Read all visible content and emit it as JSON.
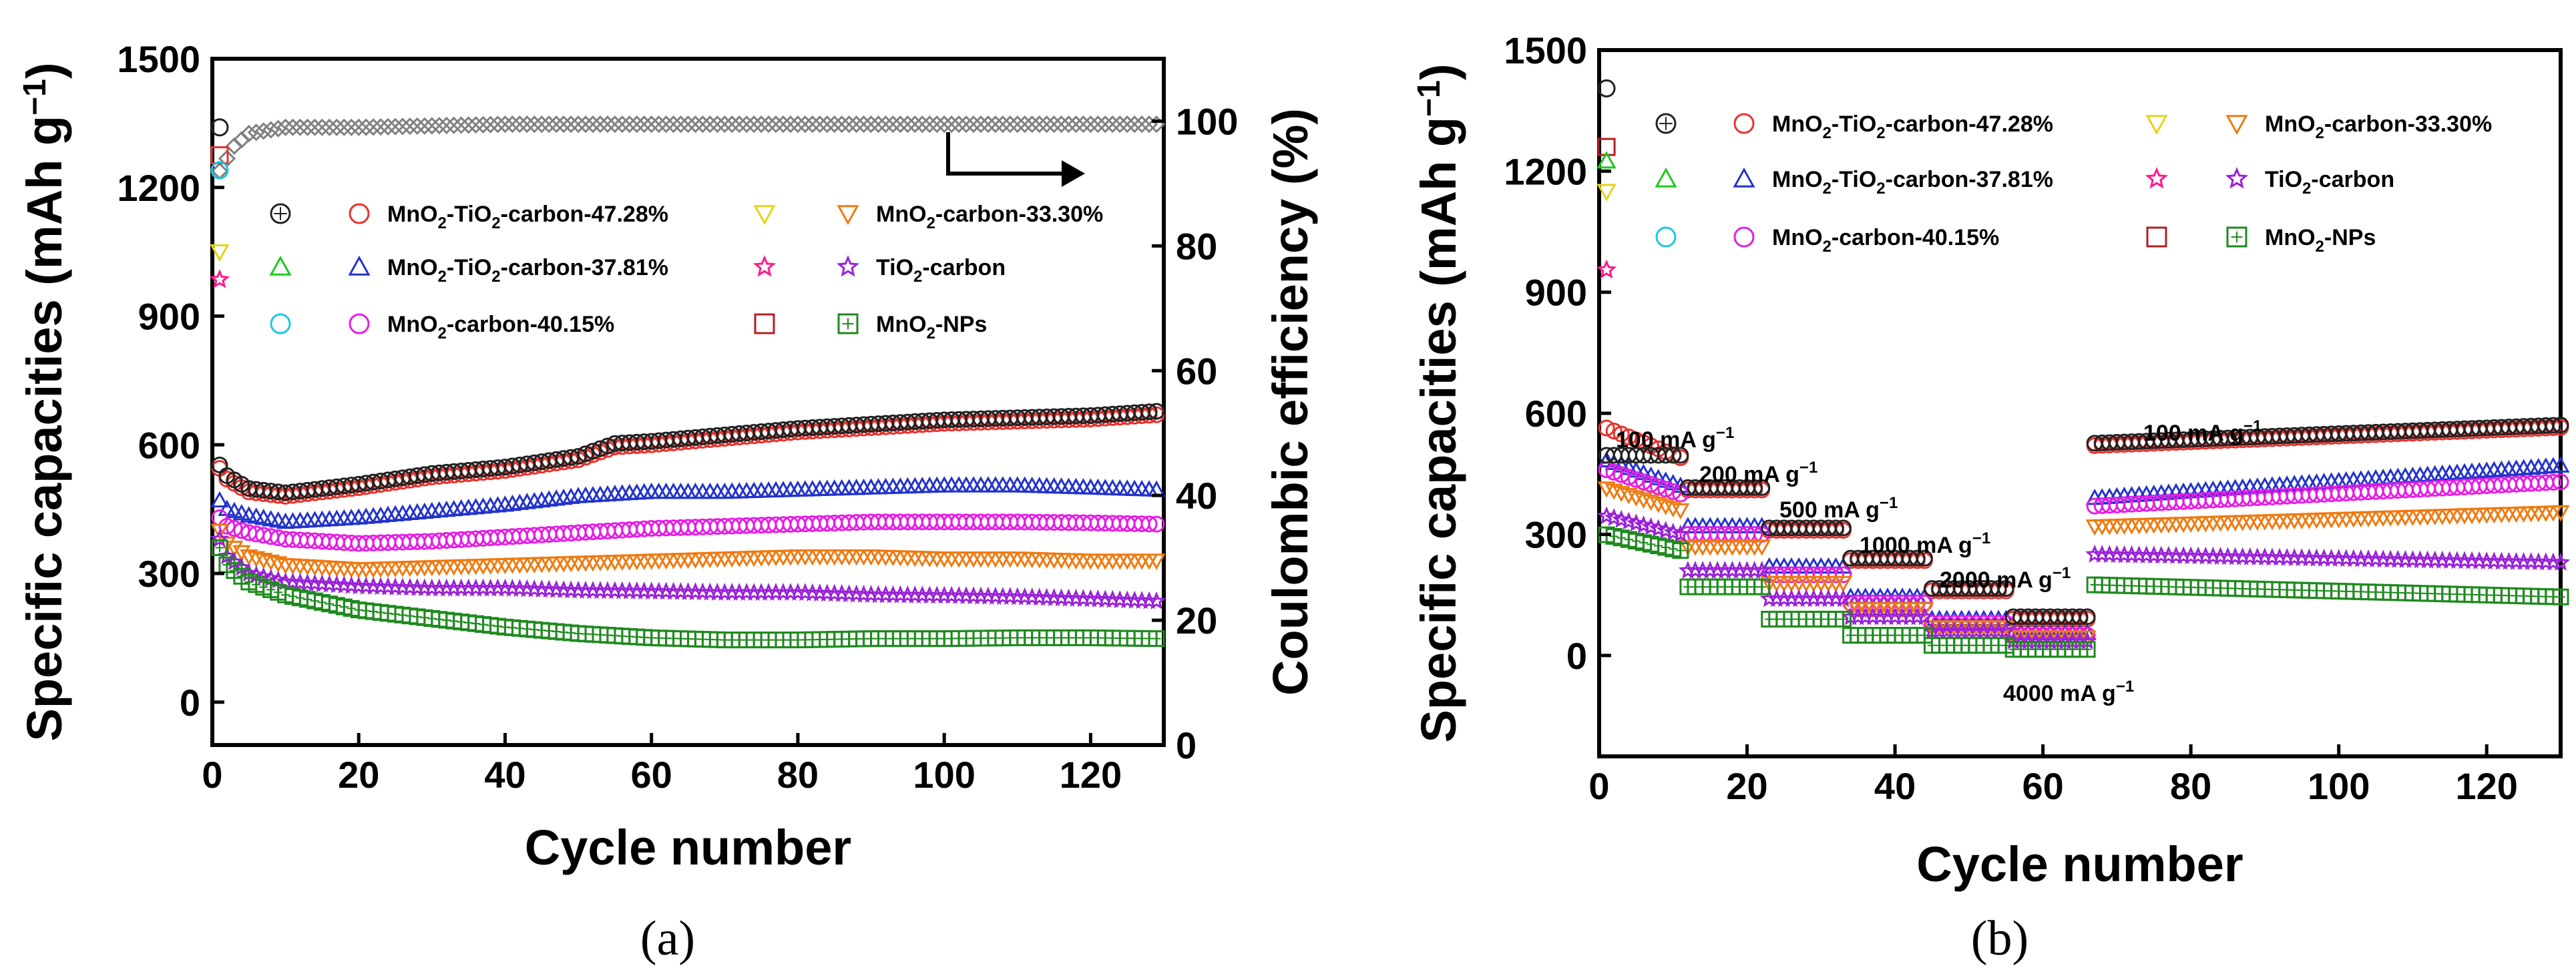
{
  "chart_data": [
    {
      "panel": "(a)",
      "type": "scatter",
      "xlabel": "Cycle number",
      "ylabel": "Specific capacities (mAh g-1)",
      "ylabel_parts": [
        "Specific capacities (mAh g",
        "−1",
        ")"
      ],
      "y2label": "Coulombic efficiency (%)",
      "xlim": [
        0,
        130
      ],
      "ylim": [
        -100,
        1500
      ],
      "y2lim": [
        0,
        110
      ],
      "xticks": [
        0,
        20,
        40,
        60,
        80,
        100,
        120
      ],
      "yticks": [
        0,
        300,
        600,
        900,
        1200,
        1500
      ],
      "y2ticks": [
        0,
        20,
        40,
        60,
        80,
        100
      ],
      "series": [
        {
          "name": "MnO2-TiO2-carbon-47.28%",
          "name_parts": [
            "MnO",
            "2",
            "-TiO",
            "2",
            "-carbon-47.28%"
          ],
          "color": "#e8322e",
          "marker": "circle",
          "x": [
            1,
            2,
            5,
            10,
            20,
            30,
            40,
            50,
            55,
            60,
            70,
            80,
            90,
            100,
            110,
            120,
            129
          ],
          "y": [
            545,
            520,
            490,
            480,
            500,
            525,
            540,
            565,
            595,
            600,
            615,
            630,
            640,
            650,
            655,
            660,
            670
          ]
        },
        {
          "name": "MnO2-TiO2-carbon-37.81%",
          "name_parts": [
            "MnO",
            "2",
            "-TiO",
            "2",
            "-carbon-37.81%"
          ],
          "color": "#2233cc",
          "marker": "triangle-up",
          "x": [
            1,
            2,
            5,
            10,
            20,
            30,
            40,
            50,
            60,
            70,
            80,
            90,
            100,
            110,
            120,
            129
          ],
          "y": [
            470,
            450,
            435,
            420,
            430,
            445,
            460,
            480,
            490,
            490,
            495,
            500,
            505,
            505,
            500,
            495
          ]
        },
        {
          "name": "MnO2-carbon-40.15%",
          "name_parts": [
            "MnO",
            "2",
            "-carbon-40.15%"
          ],
          "color": "#e61ce6",
          "marker": "circle",
          "x": [
            1,
            2,
            5,
            10,
            20,
            30,
            40,
            50,
            60,
            70,
            80,
            90,
            100,
            110,
            120,
            129
          ],
          "y": [
            430,
            410,
            395,
            380,
            370,
            375,
            385,
            395,
            405,
            410,
            415,
            420,
            420,
            420,
            418,
            415
          ]
        },
        {
          "name": "MnO2-carbon-33.30%",
          "name_parts": [
            "MnO",
            "2",
            "-carbon-33.30%"
          ],
          "color": "#f07a10",
          "marker": "triangle-down",
          "x": [
            1,
            2,
            5,
            10,
            20,
            30,
            40,
            50,
            60,
            70,
            80,
            90,
            100,
            110,
            120,
            129
          ],
          "y": [
            400,
            370,
            340,
            320,
            310,
            315,
            320,
            325,
            330,
            335,
            340,
            340,
            335,
            335,
            330,
            330
          ]
        },
        {
          "name": "TiO2-carbon",
          "name_parts": [
            "TiO",
            "2",
            "-carbon"
          ],
          "color": "#9a22d6",
          "marker": "star",
          "x": [
            1,
            2,
            5,
            10,
            20,
            30,
            40,
            50,
            60,
            70,
            80,
            90,
            100,
            110,
            120,
            129
          ],
          "y": [
            380,
            340,
            300,
            280,
            270,
            265,
            265,
            260,
            258,
            255,
            255,
            250,
            248,
            245,
            240,
            235
          ]
        },
        {
          "name": "MnO2-NPs",
          "name_parts": [
            "MnO",
            "2",
            "-NPs"
          ],
          "color": "#1e8a1e",
          "marker": "square-plus",
          "x": [
            1,
            2,
            5,
            10,
            20,
            30,
            40,
            50,
            60,
            70,
            80,
            90,
            100,
            110,
            120,
            129
          ],
          "y": [
            360,
            320,
            280,
            250,
            215,
            195,
            175,
            160,
            150,
            145,
            145,
            148,
            148,
            150,
            150,
            148
          ]
        },
        {
          "name": "Coulombic efficiency",
          "color": "#808080",
          "marker": "diamond",
          "axis": "y2",
          "x": [
            1,
            2,
            3,
            5,
            10,
            20,
            40,
            60,
            80,
            100,
            120,
            129
          ],
          "y": [
            92,
            94,
            96,
            98,
            99,
            99,
            99.5,
            99.5,
            99.5,
            99.5,
            99.5,
            99.5
          ]
        }
      ],
      "initial_points": [
        {
          "series": "black",
          "x": 1,
          "y": 1340
        },
        {
          "series": "red",
          "x": 1,
          "y": 1275
        },
        {
          "series": "cyan",
          "x": 1,
          "y": 1240
        },
        {
          "series": "yellow",
          "x": 1,
          "y": 1050
        },
        {
          "series": "pink-star",
          "x": 1,
          "y": 985
        }
      ],
      "annotation": {
        "type": "arrow",
        "direction": "right",
        "meaning": "Coulombic efficiency refers to right axis"
      }
    },
    {
      "panel": "(b)",
      "type": "scatter",
      "xlabel": "Cycle number",
      "ylabel": "Specific capacities (mAh g-1)",
      "ylabel_parts": [
        "Specific capacities (mAh g",
        "−1",
        ")"
      ],
      "xlim": [
        0,
        130
      ],
      "ylim": [
        -250,
        1500
      ],
      "xticks": [
        0,
        20,
        40,
        60,
        80,
        100,
        120
      ],
      "yticks": [
        0,
        300,
        600,
        900,
        1200,
        1500
      ],
      "rate_segments": [
        {
          "label": "100 mA g-1",
          "parts": [
            "100 mA g",
            "−1"
          ],
          "start": 1,
          "end": 11
        },
        {
          "label": "200 mA g-1",
          "parts": [
            "200 mA g",
            "−1"
          ],
          "start": 12,
          "end": 22
        },
        {
          "label": "500 mA g-1",
          "parts": [
            "500 mA g",
            "−1"
          ],
          "start": 23,
          "end": 33
        },
        {
          "label": "1000 mA g-1",
          "parts": [
            "1000 mA g",
            "−1"
          ],
          "start": 34,
          "end": 44
        },
        {
          "label": "2000 mA g-1",
          "parts": [
            "2000 mA g",
            "−1"
          ],
          "start": 45,
          "end": 55
        },
        {
          "label": "4000 mA g-1",
          "parts": [
            "4000 mA g",
            "−1"
          ],
          "start": 56,
          "end": 66
        },
        {
          "label": "100 mA g-1",
          "parts": [
            "100 mA g",
            "−1"
          ],
          "start": 67,
          "end": 130
        }
      ],
      "series": [
        {
          "name": "MnO2-TiO2-carbon-47.28%",
          "name_parts": [
            "MnO",
            "2",
            "-TiO",
            "2",
            "-carbon-47.28%"
          ],
          "color": "#e8322e",
          "marker": "circle",
          "levels": [
            490,
            410,
            310,
            235,
            160,
            90,
            520
          ],
          "end_value": 565
        },
        {
          "name": "MnO2-TiO2-carbon-37.81%",
          "name_parts": [
            "MnO",
            "2",
            "-TiO",
            "2",
            "-carbon-37.81%"
          ],
          "color": "#2233cc",
          "marker": "triangle-up",
          "levels": [
            420,
            320,
            220,
            145,
            90,
            55,
            390
          ],
          "end_value": 470
        },
        {
          "name": "MnO2-carbon-40.15%",
          "name_parts": [
            "MnO",
            "2",
            "-carbon-40.15%"
          ],
          "color": "#e61ce6",
          "marker": "circle",
          "levels": [
            400,
            300,
            200,
            130,
            80,
            50,
            370
          ],
          "end_value": 430
        },
        {
          "name": "MnO2-carbon-33.30%",
          "name_parts": [
            "MnO",
            "2",
            "-carbon-33.30%"
          ],
          "color": "#f07a10",
          "marker": "triangle-down",
          "levels": [
            360,
            270,
            180,
            115,
            70,
            45,
            320
          ],
          "end_value": 355
        },
        {
          "name": "TiO2-carbon",
          "name_parts": [
            "TiO",
            "2",
            "-carbon"
          ],
          "color": "#9a22d6",
          "marker": "star",
          "levels": [
            300,
            210,
            140,
            95,
            60,
            35,
            250
          ],
          "end_value": 230
        },
        {
          "name": "MnO2-NPs",
          "name_parts": [
            "MnO",
            "2",
            "-NPs"
          ],
          "color": "#1e8a1e",
          "marker": "square-plus",
          "levels": [
            260,
            170,
            90,
            50,
            25,
            15,
            175
          ],
          "end_value": 145
        }
      ],
      "initial_points": [
        {
          "series": "black",
          "x": 1,
          "y": 1405
        },
        {
          "series": "brown-square",
          "x": 1,
          "y": 1260
        },
        {
          "series": "green",
          "x": 1,
          "y": 1225
        },
        {
          "series": "yellow",
          "x": 1,
          "y": 1150
        },
        {
          "series": "pink-star",
          "x": 1,
          "y": 955
        }
      ]
    }
  ],
  "captions": [
    "(a)",
    "(b)"
  ]
}
